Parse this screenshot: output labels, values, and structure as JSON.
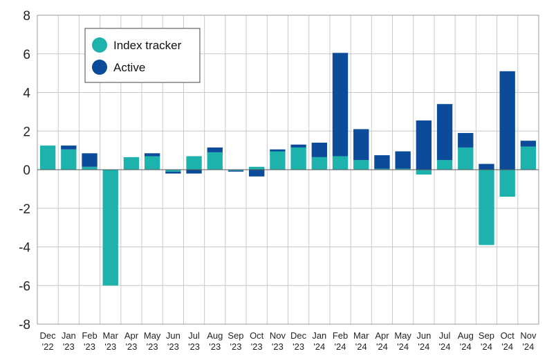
{
  "chart_data": {
    "type": "bar",
    "stacked": true,
    "categories": [
      [
        "Dec",
        "'22"
      ],
      [
        "Jan",
        "'23"
      ],
      [
        "Feb",
        "'23"
      ],
      [
        "Mar",
        "'23"
      ],
      [
        "Apr",
        "'23"
      ],
      [
        "May",
        "'23"
      ],
      [
        "Jun",
        "'23"
      ],
      [
        "Jul",
        "'23"
      ],
      [
        "Aug",
        "'23"
      ],
      [
        "Sep",
        "'23"
      ],
      [
        "Oct",
        "'23"
      ],
      [
        "Nov",
        "'23"
      ],
      [
        "Dec",
        "'23"
      ],
      [
        "Jan",
        "'24"
      ],
      [
        "Feb",
        "'24"
      ],
      [
        "Mar",
        "'24"
      ],
      [
        "Apr",
        "'24"
      ],
      [
        "May",
        "'24"
      ],
      [
        "Jun",
        "'24"
      ],
      [
        "Jul",
        "'24"
      ],
      [
        "Aug",
        "'24"
      ],
      [
        "Sep",
        "'24"
      ],
      [
        "Oct",
        "'24"
      ],
      [
        "Nov",
        "'24"
      ]
    ],
    "series": [
      {
        "name": "Index tracker",
        "color": "#1db3ac",
        "values": [
          1.25,
          1.05,
          0.15,
          -6.0,
          0.65,
          0.7,
          -0.1,
          0.7,
          0.9,
          -0.05,
          0.15,
          0.95,
          1.15,
          0.65,
          0.7,
          0.5,
          0.05,
          0.05,
          -0.25,
          0.5,
          1.15,
          -3.9,
          -1.4,
          1.2
        ]
      },
      {
        "name": "Active",
        "color": "#0b4b9a",
        "values": [
          0.0,
          0.2,
          0.7,
          0.0,
          0.0,
          0.15,
          -0.1,
          -0.2,
          0.25,
          -0.05,
          -0.35,
          0.1,
          0.15,
          0.75,
          5.35,
          1.6,
          0.7,
          0.9,
          2.55,
          2.9,
          0.75,
          0.3,
          5.1,
          0.3
        ]
      }
    ],
    "ylim": [
      -8,
      8
    ],
    "yticks": [
      -8,
      -6,
      -4,
      -2,
      0,
      2,
      4,
      6,
      8
    ],
    "grid": true,
    "legend_position": "top-left"
  }
}
